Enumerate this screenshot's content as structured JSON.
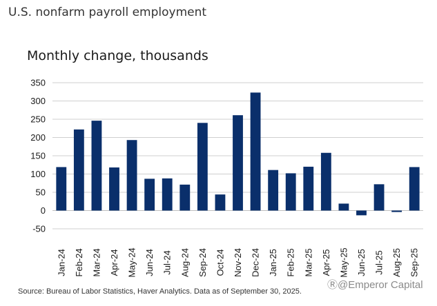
{
  "header": {
    "title": "U.S. nonfarm payroll employment"
  },
  "footer": {
    "source": "Source: Bureau of Labor Statistics, Haver Analytics. Data as of September 30, 2025.",
    "watermark": "Ⓡ@Emperor Capital"
  },
  "chart_data": {
    "type": "bar",
    "title": "Monthly change, thousands",
    "xlabel": "",
    "ylabel": "",
    "ylim": [
      -50,
      350
    ],
    "yticks": [
      -50,
      0,
      50,
      100,
      150,
      200,
      250,
      300,
      350
    ],
    "grid": true,
    "bar_color": "#0a2f6b",
    "categories": [
      "Jan-24",
      "Feb-24",
      "Mar-24",
      "Apr-24",
      "May-24",
      "Jun-24",
      "Jul-24",
      "Aug-24",
      "Sep-24",
      "Oct-24",
      "Nov-24",
      "Dec-24",
      "Jan-25",
      "Feb-25",
      "Mar-25",
      "Apr-25",
      "May-25",
      "Jun-25",
      "Jul-25",
      "Aug-25",
      "Sep-25"
    ],
    "values": [
      119,
      222,
      246,
      118,
      193,
      87,
      88,
      71,
      240,
      44,
      261,
      323,
      111,
      102,
      120,
      158,
      19,
      -13,
      72,
      -4,
      119
    ]
  }
}
